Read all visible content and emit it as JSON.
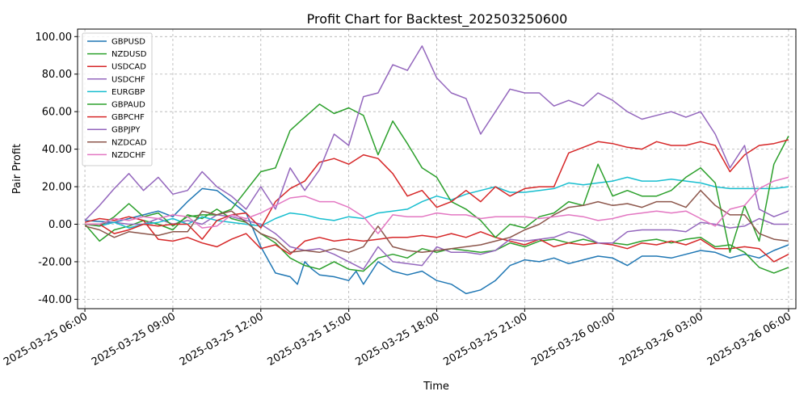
{
  "chart_data": {
    "type": "line",
    "title": "Profit Chart for Backtest_202503250600",
    "xlabel": "Time",
    "ylabel": "Pair Profit",
    "ylim": [
      -45,
      104
    ],
    "x_range_hours": [
      -0.25,
      24.25
    ],
    "x_ticks": [
      {
        "label": "2025-03-25 06:00",
        "hour": 0
      },
      {
        "label": "2025-03-25 09:00",
        "hour": 3
      },
      {
        "label": "2025-03-25 12:00",
        "hour": 6
      },
      {
        "label": "2025-03-25 15:00",
        "hour": 9
      },
      {
        "label": "2025-03-25 18:00",
        "hour": 12
      },
      {
        "label": "2025-03-25 21:00",
        "hour": 15
      },
      {
        "label": "2025-03-26 00:00",
        "hour": 18
      },
      {
        "label": "2025-03-26 03:00",
        "hour": 21
      },
      {
        "label": "2025-03-26 06:00",
        "hour": 24
      }
    ],
    "y_ticks": [
      {
        "label": "-40.00",
        "value": -40
      },
      {
        "label": "-20.00",
        "value": -20
      },
      {
        "label": "0.00",
        "value": 0
      },
      {
        "label": "20.00",
        "value": 20
      },
      {
        "label": "40.00",
        "value": 40
      },
      {
        "label": "60.00",
        "value": 60
      },
      {
        "label": "80.00",
        "value": 80
      },
      {
        "label": "100.00",
        "value": 100
      }
    ],
    "grid": true,
    "legend_position": "top-left",
    "series": [
      {
        "name": "GBPUSD",
        "color": "#1f77b4",
        "hours": [
          0,
          1,
          2,
          2.5,
          3,
          3.5,
          4,
          4.5,
          5,
          5.5,
          6,
          6.5,
          7,
          7.25,
          7.5,
          7.75,
          8,
          8.5,
          9,
          9.25,
          9.5,
          10,
          10.5,
          11,
          11.5,
          12,
          12.5,
          13,
          13.5,
          14,
          14.5,
          15,
          15.5,
          16,
          16.5,
          17,
          17.5,
          18,
          18.5,
          19,
          19.5,
          20,
          20.5,
          21,
          21.5,
          22,
          22.5,
          23,
          23.5,
          24
        ],
        "values": [
          2,
          1,
          5,
          7,
          4,
          12,
          19,
          18,
          12,
          6,
          -12,
          -26,
          -28,
          -32,
          -20,
          -24,
          -27,
          -28,
          -30,
          -25,
          -32,
          -20,
          -25,
          -27,
          -25,
          -30,
          -32,
          -37,
          -35,
          -30,
          -22,
          -19,
          -20,
          -18,
          -21,
          -19,
          -17,
          -18,
          -22,
          -17,
          -17,
          -18,
          -16,
          -14,
          -15,
          -18,
          -16,
          -18,
          -14,
          -11
        ]
      },
      {
        "name": "NZDUSD",
        "color": "#2ca02c",
        "hours": [
          0,
          0.5,
          1,
          1.5,
          2,
          2.5,
          3,
          3.5,
          4,
          4.5,
          5,
          5.5,
          6,
          6.5,
          7,
          7.5,
          8,
          8.5,
          9,
          9.5,
          10,
          10.5,
          11,
          11.5,
          12,
          12.5,
          13,
          13.5,
          14,
          14.5,
          15,
          15.5,
          16,
          16.5,
          17,
          17.5,
          18,
          18.5,
          19,
          19.5,
          20,
          20.5,
          21,
          21.5,
          22,
          22.5,
          23,
          23.5,
          24
        ],
        "values": [
          0,
          -9,
          -3,
          -1,
          2,
          0,
          -3,
          5,
          3,
          8,
          3,
          1,
          -5,
          -10,
          -18,
          -22,
          -24,
          -20,
          -24,
          -25,
          -18,
          -16,
          -18,
          -13,
          -15,
          -13,
          -14,
          -15,
          -14,
          -10,
          -12,
          -9,
          -8,
          -10,
          -8,
          -10,
          -10,
          -11,
          -9,
          -8,
          -10,
          -8,
          -7,
          -12,
          -11,
          -15,
          -23,
          -26,
          -23
        ]
      },
      {
        "name": "USDCAD",
        "color": "#d62728",
        "hours": [
          0,
          0.5,
          1,
          1.5,
          2,
          2.5,
          3,
          3.5,
          4,
          4.5,
          5,
          5.5,
          6,
          6.5,
          7,
          7.5,
          8,
          8.5,
          9,
          9.5,
          10,
          10.5,
          11,
          11.5,
          12,
          12.5,
          13,
          13.5,
          14,
          14.5,
          15,
          15.5,
          16,
          16.5,
          17,
          17.5,
          18,
          18.5,
          19,
          19.5,
          20,
          20.5,
          21,
          21.5,
          22,
          22.5,
          23,
          23.5,
          24
        ],
        "values": [
          1,
          3,
          2,
          4,
          2,
          -8,
          -9,
          -7,
          -10,
          -12,
          -8,
          -5,
          -13,
          -11,
          -16,
          -9,
          -7,
          -9,
          -8,
          -9,
          -8,
          -7,
          -7,
          -6,
          -7,
          -5,
          -7,
          -4,
          -7,
          -9,
          -11,
          -8,
          -12,
          -10,
          -11,
          -10,
          -11,
          -13,
          -10,
          -11,
          -9,
          -11,
          -8,
          -13,
          -13,
          -12,
          -13,
          -20,
          -16
        ]
      },
      {
        "name": "USDCHF",
        "color": "#9467bd",
        "hours": [
          0,
          0.5,
          1,
          1.5,
          2,
          2.5,
          3,
          3.5,
          4,
          4.5,
          5,
          5.5,
          6,
          6.5,
          7,
          7.5,
          8,
          8.5,
          9,
          9.5,
          10,
          10.5,
          11,
          11.5,
          12,
          12.5,
          13,
          13.5,
          14,
          14.5,
          15,
          15.5,
          16,
          16.5,
          17,
          17.5,
          18,
          18.5,
          19,
          19.5,
          20,
          20.5,
          21,
          21.5,
          22,
          22.5,
          23,
          23.5,
          24
        ],
        "values": [
          0,
          0,
          1,
          0,
          0,
          3,
          0,
          2,
          0,
          5,
          4,
          2,
          0,
          -5,
          -12,
          -14,
          -13,
          -16,
          -20,
          -24,
          -12,
          -20,
          -21,
          -22,
          -12,
          -15,
          -15,
          -16,
          -14,
          -8,
          -9,
          -8,
          -7,
          -4,
          -6,
          -10,
          -10,
          -4,
          -3,
          -3,
          -3,
          -4,
          1,
          0,
          -2,
          -1,
          3,
          0,
          0
        ]
      },
      {
        "name": "EURGBP",
        "color": "#17becf",
        "hours": [
          0,
          0.5,
          1,
          1.5,
          2,
          2.5,
          3,
          3.5,
          4,
          4.5,
          5,
          5.5,
          6,
          6.5,
          7,
          7.5,
          8,
          8.5,
          9,
          9.5,
          10,
          10.5,
          11,
          11.5,
          12,
          12.5,
          13,
          13.5,
          14,
          14.5,
          15,
          15.5,
          16,
          16.5,
          17,
          17.5,
          18,
          18.5,
          19,
          19.5,
          20,
          20.5,
          21,
          21.5,
          22,
          22.5,
          23,
          23.5,
          24
        ],
        "values": [
          0,
          -1,
          1,
          -2,
          0,
          1,
          3,
          0,
          4,
          2,
          1,
          0,
          -1,
          3,
          6,
          5,
          3,
          2,
          4,
          3,
          6,
          7,
          8,
          12,
          15,
          13,
          16,
          18,
          20,
          17,
          17,
          18,
          19,
          22,
          21,
          22,
          23,
          25,
          23,
          23,
          24,
          23,
          22,
          20,
          19,
          19,
          19,
          19,
          20
        ]
      },
      {
        "name": "GBPAUD",
        "color": "#2ca02c",
        "hours": [
          0,
          0.5,
          1,
          1.5,
          2,
          2.5,
          3,
          3.5,
          4,
          4.5,
          5,
          5.5,
          6,
          6.5,
          7,
          7.5,
          8,
          8.5,
          9,
          9.5,
          10,
          10.5,
          11,
          11.5,
          12,
          12.5,
          13,
          13.5,
          14,
          14.5,
          15,
          15.5,
          16,
          16.5,
          17,
          17.5,
          18,
          18.5,
          19,
          19.5,
          20,
          20.5,
          21,
          21.5,
          22,
          22.5,
          23,
          23.5,
          24
        ],
        "values": [
          0,
          -1,
          4,
          11,
          4,
          6,
          -1,
          4,
          5,
          5,
          8,
          18,
          28,
          30,
          50,
          57,
          64,
          59,
          62,
          58,
          37,
          55,
          43,
          30,
          25,
          12,
          8,
          2,
          -7,
          0,
          -2,
          4,
          6,
          12,
          10,
          32,
          15,
          18,
          15,
          15,
          18,
          25,
          30,
          22,
          -15,
          10,
          -9,
          32,
          47
        ]
      },
      {
        "name": "GBPCHF",
        "color": "#d62728",
        "hours": [
          0,
          0.5,
          1,
          1.5,
          2,
          2.5,
          3,
          3.5,
          4,
          4.5,
          5,
          5.5,
          6,
          6.5,
          7,
          7.5,
          8,
          8.5,
          9,
          9.5,
          10,
          10.5,
          11,
          11.5,
          12,
          12.5,
          13,
          13.5,
          14,
          14.5,
          15,
          15.5,
          16,
          16.5,
          17,
          17.5,
          18,
          18.5,
          19,
          19.5,
          20,
          20.5,
          21,
          21.5,
          22,
          22.5,
          23,
          23.5,
          24
        ],
        "values": [
          0,
          0,
          -5,
          -3,
          0,
          -1,
          0,
          0,
          -8,
          2,
          5,
          6,
          -2,
          12,
          19,
          23,
          33,
          35,
          32,
          37,
          35,
          27,
          15,
          18,
          9,
          12,
          18,
          12,
          20,
          15,
          19,
          20,
          20,
          38,
          41,
          44,
          43,
          41,
          40,
          44,
          42,
          42,
          44,
          42,
          28,
          37,
          42,
          43,
          45
        ]
      },
      {
        "name": "GBPJPY",
        "color": "#9467bd",
        "hours": [
          0,
          0.5,
          1,
          1.5,
          2,
          2.5,
          3,
          3.5,
          4,
          4.5,
          5,
          5.5,
          6,
          6.5,
          7,
          7.5,
          8,
          8.5,
          9,
          9.5,
          10,
          10.5,
          11,
          11.5,
          12,
          12.5,
          13,
          13.5,
          14,
          14.5,
          15,
          15.5,
          16,
          16.5,
          17,
          17.5,
          18,
          18.5,
          19,
          19.5,
          20,
          20.5,
          21,
          21.5,
          22,
          22.5,
          23,
          23.5,
          24
        ],
        "values": [
          2,
          10,
          19,
          27,
          18,
          25,
          16,
          18,
          28,
          20,
          15,
          8,
          20,
          8,
          30,
          18,
          29,
          48,
          42,
          68,
          70,
          85,
          82,
          95,
          78,
          70,
          67,
          48,
          60,
          72,
          70,
          70,
          63,
          66,
          63,
          70,
          66,
          60,
          56,
          58,
          60,
          57,
          60,
          48,
          30,
          42,
          8,
          4,
          7
        ]
      },
      {
        "name": "NZDCAD",
        "color": "#8c564b",
        "hours": [
          0,
          0.5,
          1,
          1.5,
          2,
          2.5,
          3,
          3.5,
          4,
          4.5,
          5,
          5.5,
          6,
          6.5,
          7,
          7.5,
          8,
          8.5,
          9,
          9.5,
          10,
          10.5,
          11,
          11.5,
          12,
          12.5,
          13,
          13.5,
          14,
          14.5,
          15,
          15.5,
          16,
          16.5,
          17,
          17.5,
          18,
          18.5,
          19,
          19.5,
          20,
          20.5,
          21,
          21.5,
          22,
          22.5,
          23,
          23.5,
          24
        ],
        "values": [
          -1,
          -3,
          -7,
          -4,
          -5,
          -6,
          -4,
          -4,
          7,
          5,
          7,
          1,
          -5,
          -8,
          -15,
          -14,
          -15,
          -13,
          -15,
          -12,
          -1,
          -12,
          -14,
          -15,
          -14,
          -13,
          -12,
          -11,
          -9,
          -7,
          -3,
          0,
          5,
          9,
          10,
          12,
          10,
          11,
          9,
          12,
          12,
          9,
          18,
          10,
          5,
          5,
          -5,
          -8,
          -9
        ]
      },
      {
        "name": "NZDCHF",
        "color": "#e377c2",
        "hours": [
          0,
          0.5,
          1,
          1.5,
          2,
          2.5,
          3,
          3.5,
          4,
          4.5,
          5,
          5.5,
          6,
          6.5,
          7,
          7.5,
          8,
          8.5,
          9,
          9.5,
          10,
          10.5,
          11,
          11.5,
          12,
          12.5,
          13,
          13.5,
          14,
          14.5,
          15,
          15.5,
          16,
          16.5,
          17,
          17.5,
          18,
          18.5,
          19,
          19.5,
          20,
          20.5,
          21,
          21.5,
          22,
          22.5,
          23,
          23.5,
          24
        ],
        "values": [
          0,
          0,
          3,
          2,
          4,
          3,
          5,
          4,
          -2,
          -1,
          5,
          3,
          6,
          10,
          14,
          15,
          12,
          12,
          9,
          4,
          -5,
          5,
          4,
          4,
          6,
          5,
          5,
          3,
          4,
          4,
          4,
          3,
          4,
          5,
          4,
          2,
          3,
          5,
          6,
          7,
          6,
          7,
          3,
          -1,
          8,
          10,
          19,
          23,
          25
        ]
      }
    ]
  }
}
